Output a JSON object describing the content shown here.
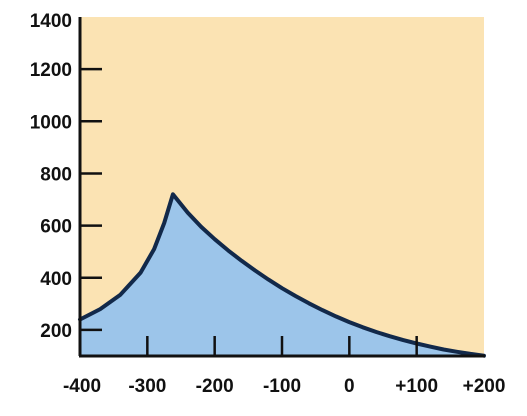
{
  "chart_data": {
    "type": "area",
    "title": "",
    "xlabel": "",
    "ylabel": "",
    "xlim": [
      -400,
      200
    ],
    "ylim": [
      100,
      1400
    ],
    "x_ticks": [
      -400,
      -300,
      -200,
      -100,
      0,
      100,
      200
    ],
    "x_tick_labels": [
      "-400",
      "-300",
      "-200",
      "-100",
      "0",
      "+100",
      "+200"
    ],
    "y_ticks": [
      200,
      400,
      600,
      800,
      1000,
      1200,
      1400
    ],
    "y_tick_labels": [
      "200",
      "400",
      "600",
      "800",
      "1000",
      "1200",
      "1400"
    ],
    "grid": false,
    "series": [
      {
        "x": [
          -400,
          -370,
          -340,
          -310,
          -290,
          -275,
          -262,
          -240,
          -220,
          -200,
          -180,
          -160,
          -140,
          -120,
          -100,
          -80,
          -60,
          -40,
          -20,
          0,
          20,
          40,
          60,
          80,
          100,
          120,
          140,
          160,
          180,
          200
        ],
        "values": [
          240,
          280,
          335,
          420,
          510,
          610,
          720,
          650,
          595,
          548,
          505,
          465,
          428,
          393,
          360,
          330,
          302,
          276,
          252,
          230,
          210,
          192,
          176,
          161,
          148,
          136,
          125,
          116,
          108,
          101
        ]
      }
    ]
  },
  "colors": {
    "plot_background": "#fbe3b3",
    "area_fill": "#9cc5ea",
    "line": "#12294a",
    "axis": "#111111"
  }
}
